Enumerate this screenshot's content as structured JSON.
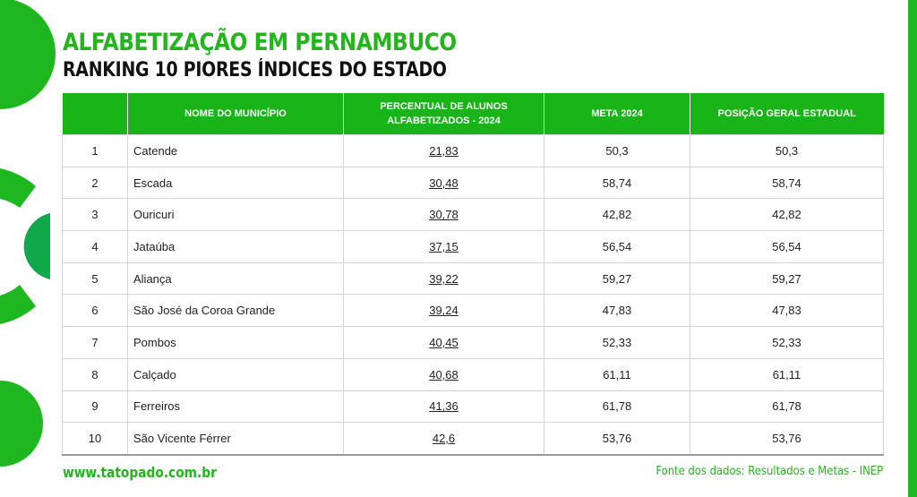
{
  "header": {
    "title": "ALFABETIZAÇÃO EM PERNAMBUCO",
    "subtitle": "RANKING 10 PIORES ÍNDICES DO ESTADO"
  },
  "table": {
    "columns": [
      "",
      "NOME DO MUNICÍPIO",
      "PERCENTUAL DE ALUNOS ALFABETIZADOS - 2024",
      "META 2024",
      "POSIÇÃO GERAL ESTADUAL"
    ],
    "rows": [
      {
        "rank": "1",
        "name": "Catende",
        "pct": "21,83",
        "meta": "50,3",
        "pos": "50,3"
      },
      {
        "rank": "2",
        "name": "Escada",
        "pct": "30,48",
        "meta": "58,74",
        "pos": "58,74"
      },
      {
        "rank": "3",
        "name": "Ouricuri",
        "pct": "30,78",
        "meta": "42,82",
        "pos": "42,82"
      },
      {
        "rank": "4",
        "name": "Jataúba",
        "pct": "37,15",
        "meta": "56,54",
        "pos": "56,54"
      },
      {
        "rank": "5",
        "name": "Aliança",
        "pct": "39,22",
        "meta": "59,27",
        "pos": "59,27"
      },
      {
        "rank": "6",
        "name": "São José da Coroa Grande",
        "pct": "39,24",
        "meta": "47,83",
        "pos": "47,83"
      },
      {
        "rank": "7",
        "name": "Pombos",
        "pct": "40,45",
        "meta": "52,33",
        "pos": "52,33"
      },
      {
        "rank": "8",
        "name": "Calçado",
        "pct": "40,68",
        "meta": "61,11",
        "pos": "61,11"
      },
      {
        "rank": "9",
        "name": "Ferreiros",
        "pct": "41,36",
        "meta": "61,78",
        "pos": "61,78"
      },
      {
        "rank": "10",
        "name": "São Vicente Férrer",
        "pct": "42,6",
        "meta": "53,76",
        "pos": "53,76"
      }
    ]
  },
  "footer": {
    "site": "www.tatopado.com.br",
    "source": "Fonte dos dados:  Resultados  e Metas - INEP"
  },
  "colors": {
    "brand_green": "#1fb71f",
    "header_green": "#18b418",
    "accent_dark_green": "#0fa84b"
  }
}
